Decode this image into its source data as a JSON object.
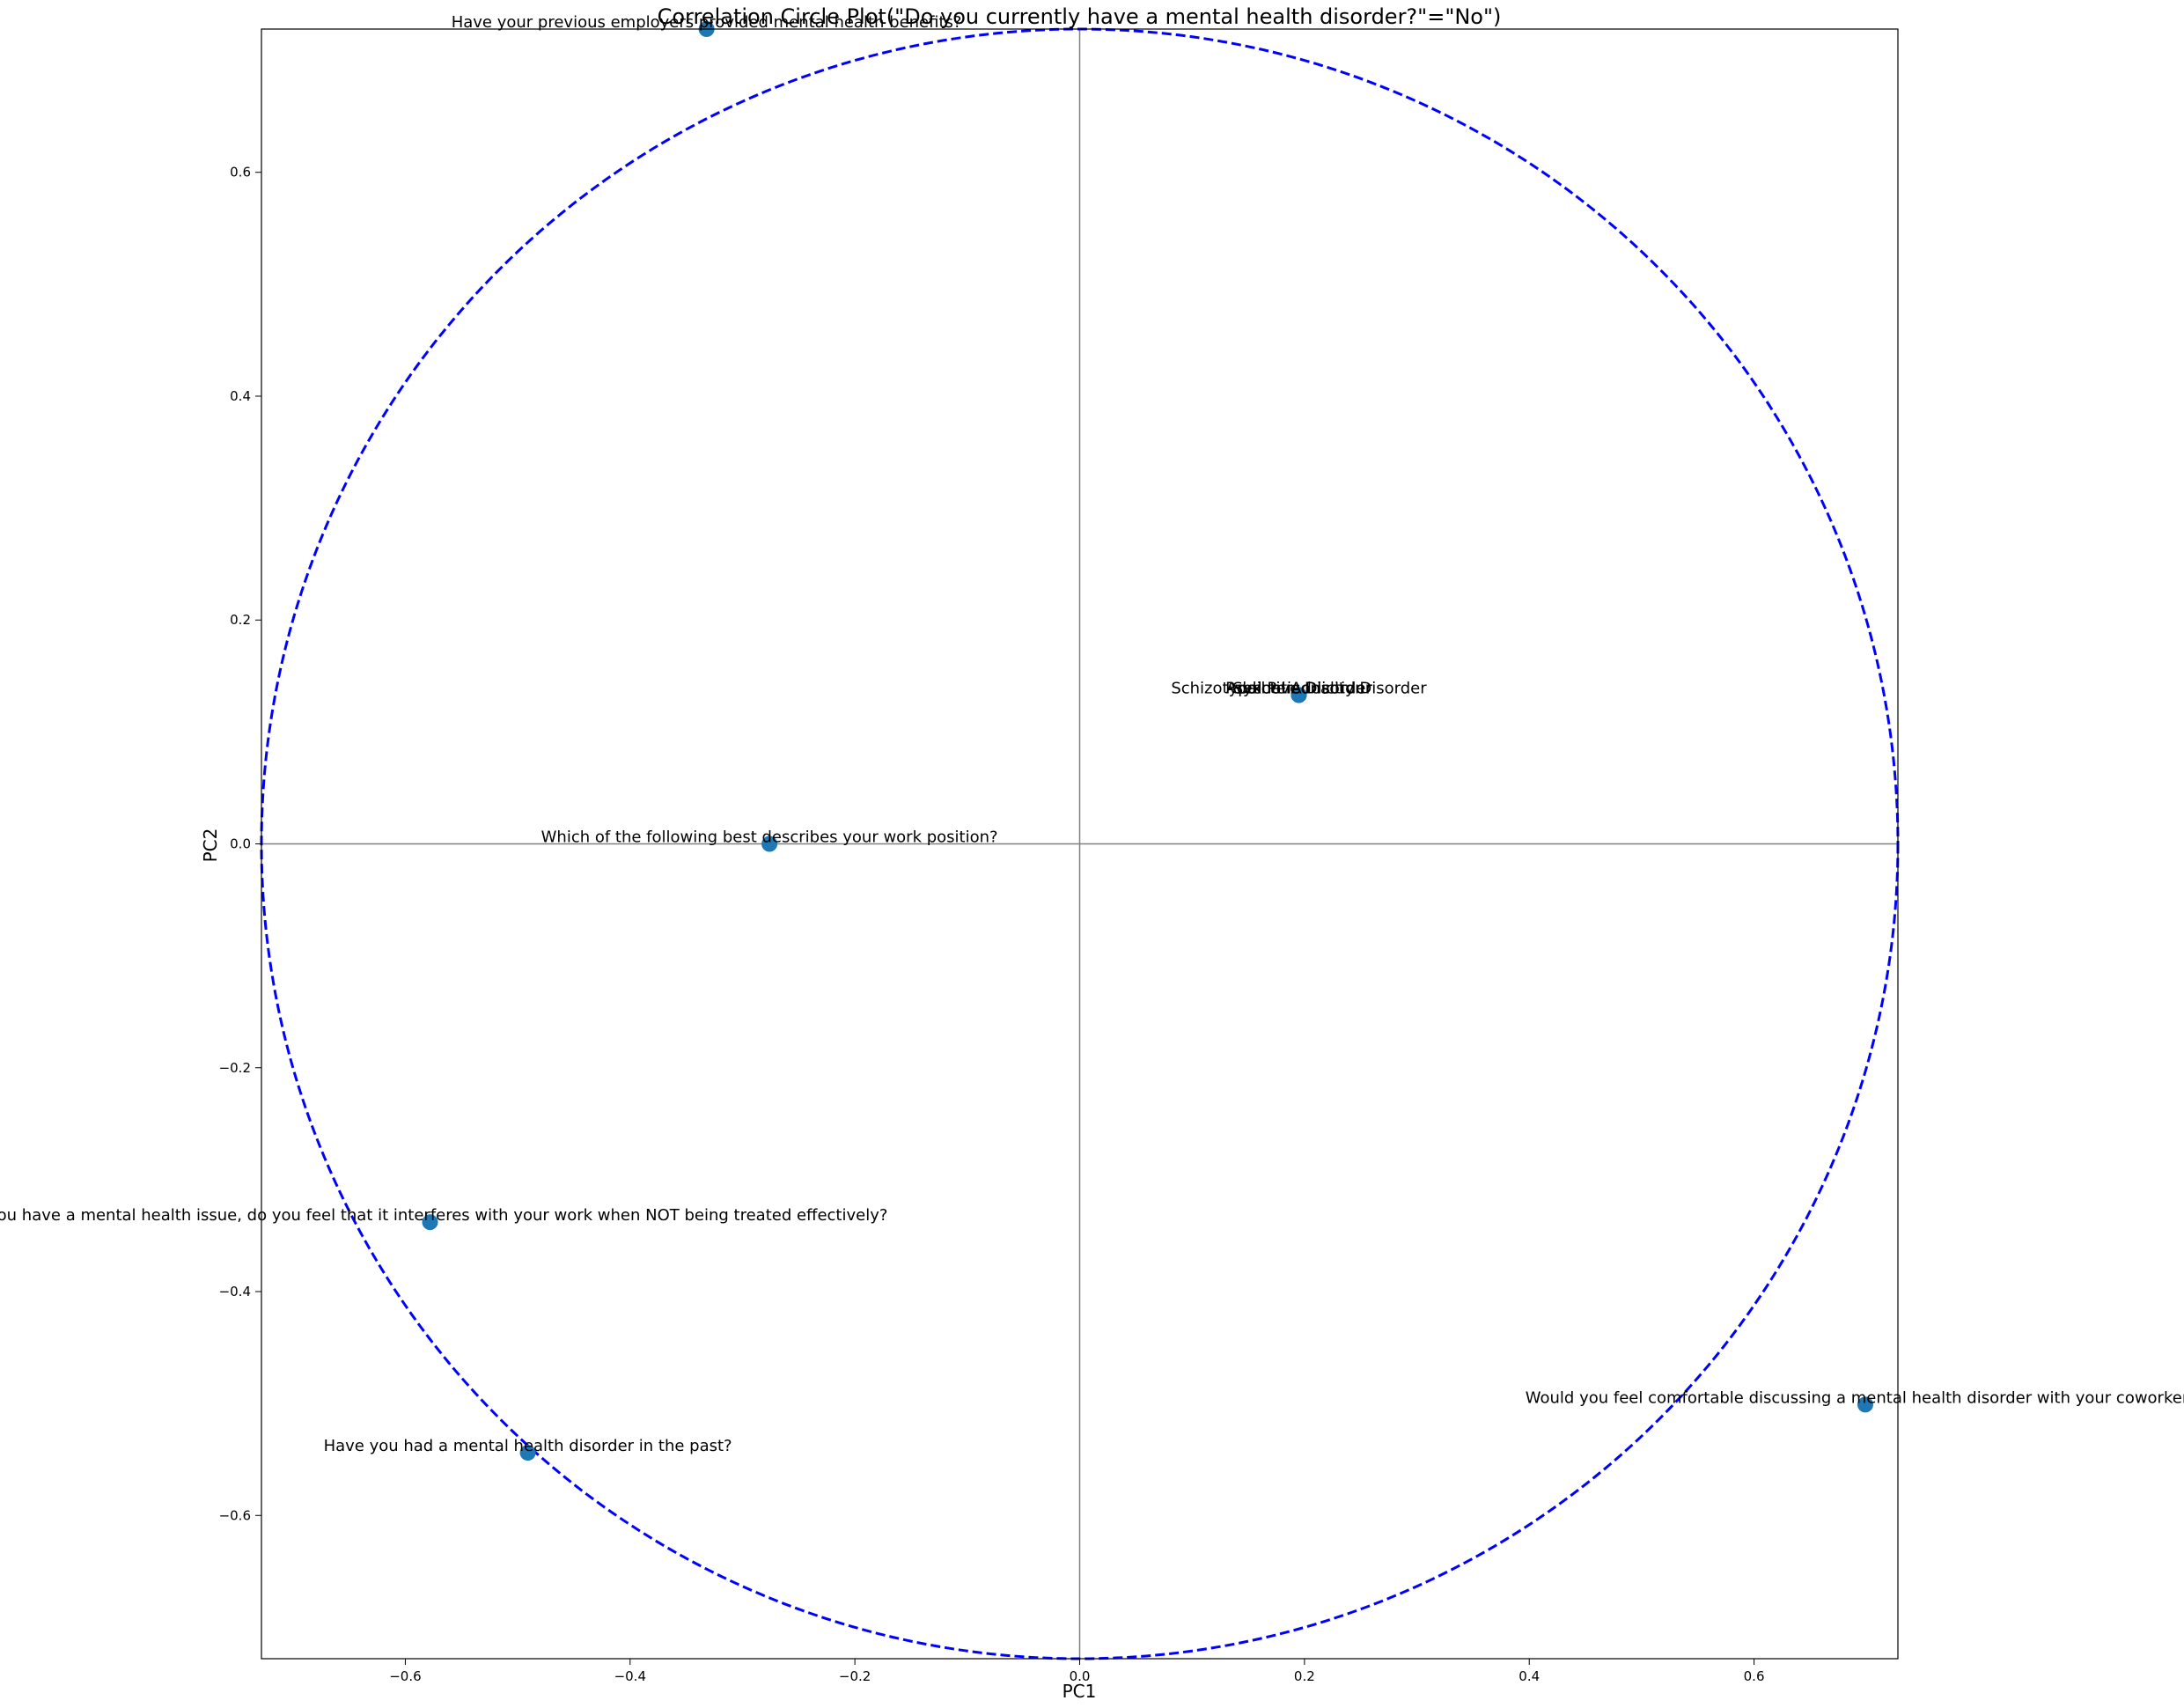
{
  "chart_data": {
    "type": "scatter",
    "title": "Correlation Circle Plot(\"Do you currently have a mental health disorder?\"=\"No\")",
    "xlabel": "PC1",
    "ylabel": "PC2",
    "xlim": [
      -0.728,
      0.728
    ],
    "ylim": [
      -0.728,
      0.728
    ],
    "xticks": [
      -0.6,
      -0.4,
      -0.2,
      0.0,
      0.2,
      0.4,
      0.6
    ],
    "yticks": [
      -0.6,
      -0.4,
      -0.2,
      0.0,
      0.2,
      0.4,
      0.6
    ],
    "tick_labels": [
      "−0.6",
      "−0.4",
      "−0.2",
      "0.0",
      "0.2",
      "0.4",
      "0.6"
    ],
    "grid": false,
    "reference_lines": [
      {
        "axis": "x",
        "value": 0
      },
      {
        "axis": "y",
        "value": 0
      }
    ],
    "circle": {
      "radius": 0.728,
      "style": "dashed",
      "color": "#0000ff"
    },
    "marker_color": "#1f77b4",
    "points": [
      {
        "label": "Have your previous employers provided mental health benefits?",
        "x": -0.332,
        "y": 0.728
      },
      {
        "label": "Schizotypal Personality Disorder",
        "x": 0.195,
        "y": 0.133
      },
      {
        "label": "Psychotic Disorder",
        "x": 0.195,
        "y": 0.133
      },
      {
        "label": "Addictive Disorder",
        "x": 0.195,
        "y": 0.133
      },
      {
        "label": "Sexual Addiction",
        "x": 0.195,
        "y": 0.133
      },
      {
        "label": "Which of the following best describes your work position?",
        "x": -0.276,
        "y": 0.0
      },
      {
        "label": "If you have a mental health issue, do you feel that it interferes with your work when NOT being treated effectively?",
        "x": -0.578,
        "y": -0.338
      },
      {
        "label": "Have you had a mental health disorder in the past?",
        "x": -0.491,
        "y": -0.544
      },
      {
        "label": "Would you feel comfortable discussing a mental health disorder with your coworkers?",
        "x": 0.699,
        "y": -0.501
      }
    ]
  }
}
